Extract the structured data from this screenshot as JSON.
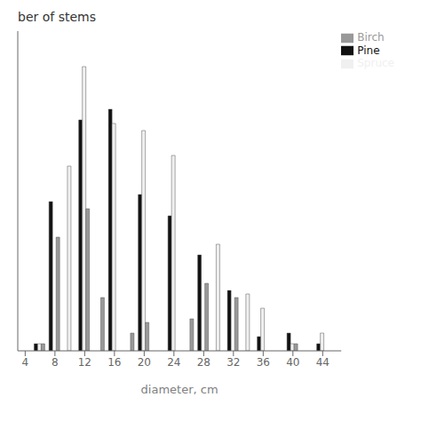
{
  "chart_data": {
    "type": "bar",
    "title": "ber of stems",
    "xlabel": "diameter, cm",
    "x": [
      6,
      8,
      10,
      12,
      14,
      16,
      18,
      20,
      22,
      24,
      26,
      28,
      30,
      32,
      34,
      36,
      38,
      40,
      42,
      44
    ],
    "series": [
      {
        "name": "Pine",
        "color": "#111111",
        "values": [
          2,
          42,
          0,
          65,
          0,
          68,
          0,
          44,
          0,
          38,
          0,
          27,
          0,
          17,
          0,
          4,
          0,
          5,
          0,
          2
        ]
      },
      {
        "name": "Spruce",
        "color": "#f0f0f0",
        "values": [
          2,
          0,
          52,
          80,
          0,
          64,
          0,
          62,
          0,
          55,
          0,
          0,
          30,
          0,
          16,
          12,
          0,
          2,
          0,
          5
        ]
      },
      {
        "name": "Birch",
        "color": "#999999",
        "values": [
          2,
          32,
          0,
          40,
          15,
          0,
          5,
          8,
          0,
          0,
          9,
          19,
          0,
          15,
          0,
          0,
          0,
          2,
          0,
          0
        ]
      }
    ],
    "xlim": [
      3.0,
      46.5
    ],
    "xticks": [
      4,
      8,
      12,
      16,
      20,
      24,
      28,
      32,
      36,
      40,
      44
    ],
    "ylim": [
      0,
      90
    ],
    "tick_labels": "x",
    "legend": "upper right",
    "grid": false
  }
}
